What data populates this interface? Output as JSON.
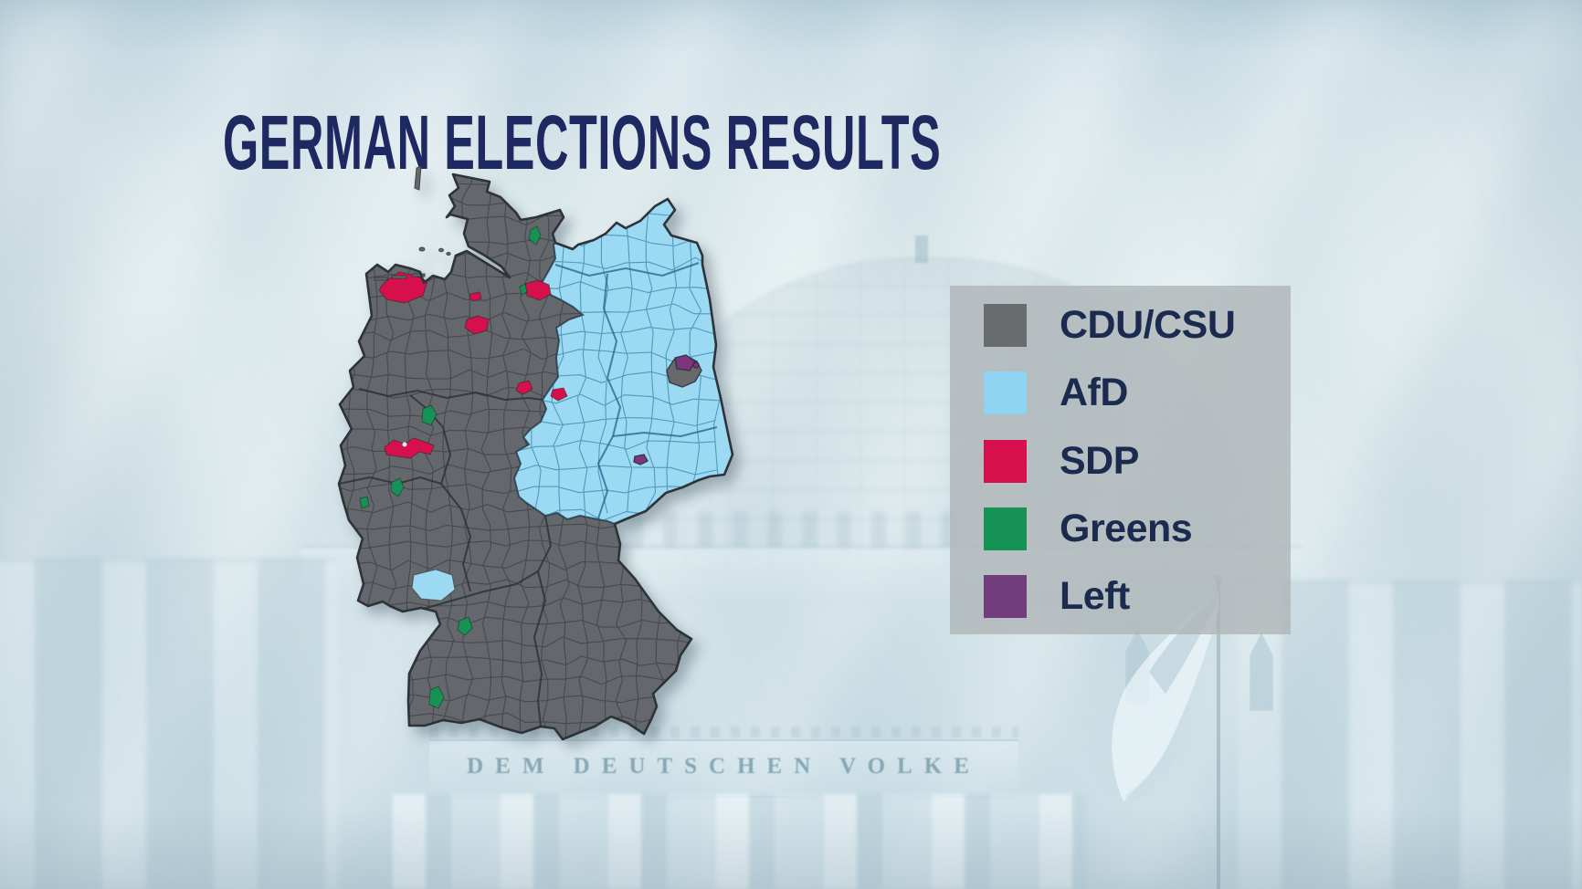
{
  "title": "GERMAN ELECTIONS RESULTS",
  "background": {
    "inscription": "DEM DEUTSCHEN VOLKE"
  },
  "legend": {
    "items": [
      {
        "label": "CDU/CSU",
        "color": "#696c6f"
      },
      {
        "label": "AfD",
        "color": "#8fd3f2"
      },
      {
        "label": "SDP",
        "color": "#d5104d"
      },
      {
        "label": "Greens",
        "color": "#169354"
      },
      {
        "label": "Left",
        "color": "#723d7d"
      }
    ]
  },
  "map": {
    "west": {
      "party": "CDU/CSU",
      "color": "#64676b"
    },
    "east": {
      "party": "AfD",
      "color": "#9cd9f2"
    },
    "city_colors": {
      "berlin_city": "#67696d"
    },
    "patch_colors": {
      "spd": "#d5104d",
      "greens": "#169354",
      "left": "#7d3580",
      "left_bright": "#93268a",
      "afd": "#9cd9f2",
      "ruhr_dot": "#d9eef8"
    }
  }
}
